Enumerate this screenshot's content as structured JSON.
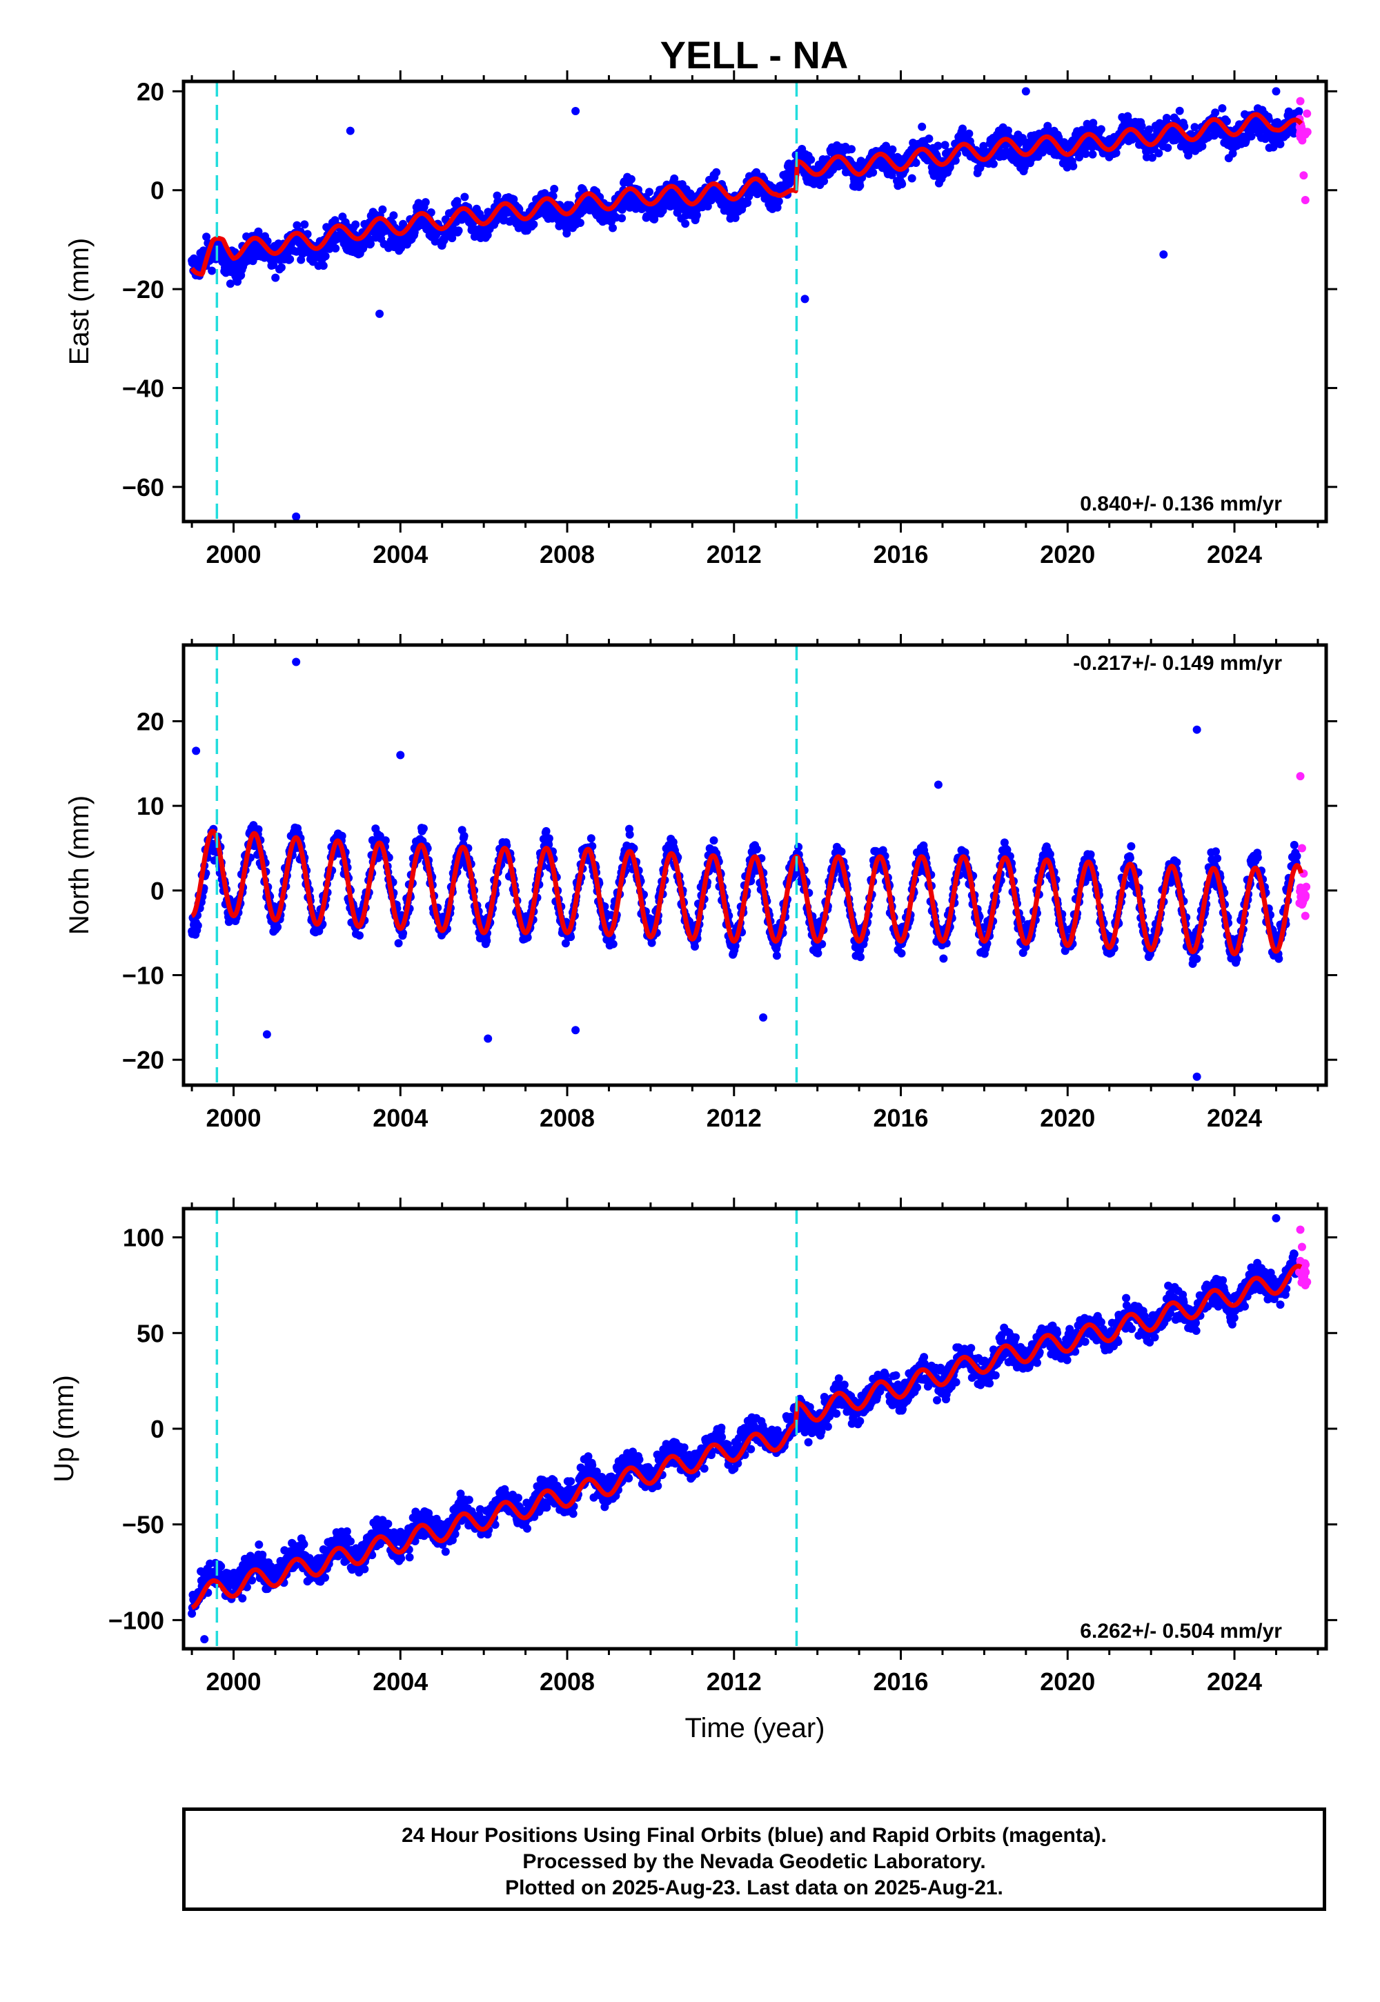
{
  "title": "YELL - NA",
  "footer": {
    "line1": "24 Hour Positions Using Final Orbits (blue) and Rapid Orbits (magenta).",
    "line2": "Processed by the Nevada Geodetic Laboratory.",
    "line3": "Plotted on 2025-Aug-23. Last data on 2025-Aug-21."
  },
  "colors": {
    "final_orbits": "#0000ff",
    "rapid_orbits": "#ff22ff",
    "model_fit": "#ee0000",
    "breaks": "#22dddd",
    "axes": "#000000"
  },
  "chart_data": [
    {
      "type": "scatter",
      "panel": "east",
      "ylabel": "East (mm)",
      "xlabel": "",
      "xlim": [
        1998.8,
        2026.2
      ],
      "ylim": [
        -67,
        22
      ],
      "x_ticks": [
        2000,
        2004,
        2008,
        2012,
        2016,
        2020,
        2024
      ],
      "y_ticks": [
        20,
        0,
        -20,
        -40,
        -60
      ],
      "rate_text": "0.840+/- 0.136 mm/yr",
      "rate_position": "bottom-right",
      "break_lines": [
        1999.6,
        2013.5
      ],
      "series": [
        {
          "name": "Final Orbits (blue)",
          "style": "points",
          "x": [
            1999.0,
            2000.0,
            2001.0,
            2002.0,
            2003.0,
            2004.0,
            2005.0,
            2006.0,
            2007.0,
            2008.0,
            2009.0,
            2010.0,
            2011.0,
            2012.0,
            2013.0,
            2013.6,
            2014.0,
            2015.0,
            2016.0,
            2017.0,
            2018.0,
            2019.0,
            2020.0,
            2021.0,
            2022.0,
            2023.0,
            2024.0,
            2025.0,
            2025.55
          ],
          "y": [
            -14,
            -14,
            -12,
            -11,
            -9,
            -8,
            -7,
            -6,
            -5,
            -4,
            -3,
            -2,
            -2,
            -1,
            0,
            4,
            5,
            5,
            6,
            7,
            8,
            9,
            9,
            10,
            11,
            11,
            12,
            13,
            12
          ],
          "outliers": [
            [
              2001.5,
              -66
            ],
            [
              2002.8,
              12
            ],
            [
              2003.5,
              -25
            ],
            [
              2008.2,
              16
            ],
            [
              2013.7,
              -22
            ],
            [
              2022.3,
              -13
            ],
            [
              2019.0,
              20
            ],
            [
              2025.0,
              20
            ]
          ]
        },
        {
          "name": "Rapid Orbits (magenta)",
          "style": "points",
          "x": [
            2025.58,
            2025.62,
            2025.66,
            2025.7
          ],
          "y": [
            18,
            12,
            3,
            -2
          ]
        },
        {
          "name": "Model fit",
          "style": "line",
          "x": [
            1999.0,
            1999.25,
            1999.5,
            1999.75,
            2000.0,
            2001.0,
            2002.0,
            2003.0,
            2004.0,
            2005.0,
            2006.0,
            2007.0,
            2008.0,
            2009.0,
            2010.0,
            2011.0,
            2012.0,
            2013.0,
            2013.49,
            2013.51,
            2014.0,
            2015.0,
            2016.0,
            2017.0,
            2018.0,
            2019.0,
            2020.0,
            2021.0,
            2022.0,
            2023.0,
            2024.0,
            2025.0,
            2025.6
          ],
          "y": [
            -14,
            -17,
            -12,
            -10,
            -12,
            -11,
            -10,
            -8,
            -7,
            -6,
            -5,
            -4,
            -3,
            -2,
            -1,
            -1,
            0,
            1,
            -2,
            4,
            5,
            5,
            6,
            7,
            8,
            9,
            9,
            10,
            11,
            12,
            13,
            14,
            12
          ],
          "annual_amplitude": 1.8
        }
      ]
    },
    {
      "type": "scatter",
      "panel": "north",
      "ylabel": "North (mm)",
      "xlabel": "",
      "xlim": [
        1998.8,
        2026.2
      ],
      "ylim": [
        -23,
        29
      ],
      "x_ticks": [
        2000,
        2004,
        2008,
        2012,
        2016,
        2020,
        2024
      ],
      "y_ticks": [
        20,
        10,
        0,
        -10,
        -20
      ],
      "rate_text": "-0.217+/- 0.149 mm/yr",
      "rate_position": "top-right",
      "break_lines": [
        1999.6,
        2013.5
      ],
      "series": [
        {
          "name": "Final Orbits (blue)",
          "style": "points",
          "x": [
            1999.0,
            2000.0,
            2002.0,
            2004.0,
            2006.0,
            2008.0,
            2010.0,
            2012.0,
            2014.0,
            2016.0,
            2018.0,
            2020.0,
            2022.0,
            2024.0,
            2025.5
          ],
          "y": [
            0,
            2,
            1,
            1,
            0,
            0,
            0,
            -1,
            -1,
            -1,
            -1,
            -1,
            -2,
            -2,
            -1
          ],
          "outliers": [
            [
              2001.5,
              27
            ],
            [
              1999.1,
              16.5
            ],
            [
              2004.0,
              16
            ],
            [
              2016.9,
              12.5
            ],
            [
              2023.1,
              19
            ],
            [
              2023.1,
              -22
            ],
            [
              2006.1,
              -17.5
            ],
            [
              2008.2,
              -16.5
            ],
            [
              2012.7,
              -15
            ],
            [
              2000.8,
              -17
            ]
          ]
        },
        {
          "name": "Rapid Orbits (magenta)",
          "style": "points",
          "x": [
            2025.58,
            2025.62,
            2025.66,
            2025.7
          ],
          "y": [
            13.5,
            5,
            2,
            -3
          ]
        },
        {
          "name": "Model fit",
          "style": "line",
          "x": [
            1999.0,
            2000.0,
            2002.0,
            2004.0,
            2006.0,
            2008.0,
            2010.0,
            2012.0,
            2014.0,
            2016.0,
            2018.0,
            2020.0,
            2022.0,
            2024.0,
            2025.6
          ],
          "y": [
            2,
            2,
            1,
            0.5,
            0,
            0,
            -0.5,
            -1,
            -1,
            -1,
            -1,
            -1.5,
            -2,
            -2.5,
            -2
          ],
          "annual_amplitude": 5.0
        }
      ]
    },
    {
      "type": "scatter",
      "panel": "up",
      "ylabel": "Up (mm)",
      "xlabel": "Time (year)",
      "xlim": [
        1998.8,
        2026.2
      ],
      "ylim": [
        -115,
        115
      ],
      "x_ticks": [
        2000,
        2004,
        2008,
        2012,
        2016,
        2020,
        2024
      ],
      "y_ticks": [
        100,
        50,
        0,
        -50,
        -100
      ],
      "rate_text": "6.262+/- 0.504 mm/yr",
      "rate_position": "bottom-right",
      "break_lines": [
        1999.6,
        2013.5
      ],
      "series": [
        {
          "name": "Final Orbits (blue)",
          "style": "points",
          "x": [
            1999.0,
            2000.0,
            2002.0,
            2004.0,
            2006.0,
            2008.0,
            2010.0,
            2012.0,
            2013.5,
            2014.0,
            2016.0,
            2018.0,
            2020.0,
            2022.0,
            2024.0,
            2025.5
          ],
          "y": [
            -86,
            -78,
            -68,
            -57,
            -45,
            -33,
            -20,
            -8,
            0,
            8,
            22,
            35,
            47,
            58,
            70,
            82
          ],
          "outliers": [
            [
              1999.3,
              -110
            ],
            [
              2025.0,
              110
            ]
          ]
        },
        {
          "name": "Rapid Orbits (magenta)",
          "style": "points",
          "x": [
            2025.58,
            2025.62,
            2025.66,
            2025.7
          ],
          "y": [
            104,
            95,
            85,
            75
          ]
        },
        {
          "name": "Model fit",
          "style": "line",
          "x": [
            1999.0,
            2000.0,
            2002.0,
            2004.0,
            2006.0,
            2008.0,
            2010.0,
            2012.0,
            2013.49,
            2013.51,
            2014.0,
            2016.0,
            2018.0,
            2020.0,
            2022.0,
            2024.0,
            2025.6
          ],
          "y": [
            -88,
            -82,
            -71,
            -59,
            -47,
            -35,
            -23,
            -11,
            -3,
            8,
            10,
            22,
            35,
            46,
            57,
            70,
            80
          ],
          "annual_amplitude": 5.5
        }
      ]
    }
  ]
}
